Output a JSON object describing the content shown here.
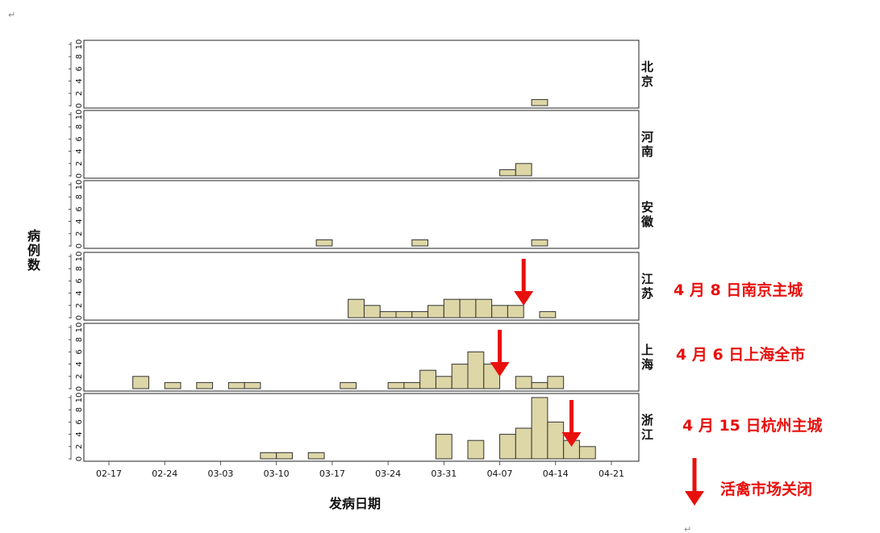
{
  "chart_data": {
    "type": "bar",
    "xlabel": "发病日期",
    "ylabel": "病例数",
    "x_ticks": [
      "02-17",
      "02-24",
      "03-03",
      "03-10",
      "03-17",
      "03-24",
      "03-31",
      "04-07",
      "04-14",
      "04-21"
    ],
    "bin_start": "02-15",
    "bin_days": 2,
    "y_ticks": [
      "0",
      "2",
      "4",
      "6",
      "8",
      "10"
    ],
    "ylim": [
      0,
      10
    ],
    "bar_color": "#ddd6a6",
    "panels": [
      {
        "name": "北京",
        "label_lines": [
          "北",
          "京"
        ],
        "bins": {
          "04-11": 1
        }
      },
      {
        "name": "河南",
        "label_lines": [
          "河",
          "南"
        ],
        "bins": {
          "04-07": 1,
          "04-09": 2
        }
      },
      {
        "name": "安徽",
        "label_lines": [
          "安",
          "徽"
        ],
        "bins": {
          "03-15": 1,
          "03-27": 1,
          "04-11": 1
        }
      },
      {
        "name": "江苏",
        "label_lines": [
          "江",
          "苏"
        ],
        "bins": {
          "03-19": 3,
          "03-21": 2,
          "03-23": 1,
          "03-25": 1,
          "03-27": 1,
          "03-29": 2,
          "03-31": 3,
          "04-02": 3,
          "04-04": 3,
          "04-06": 2,
          "04-08": 2,
          "04-12": 1
        }
      },
      {
        "name": "上海",
        "label_lines": [
          "上",
          "海"
        ],
        "bins": {
          "02-20": 2,
          "02-24": 1,
          "02-28": 1,
          "03-04": 1,
          "03-06": 1,
          "03-18": 1,
          "03-24": 1,
          "03-26": 1,
          "03-28": 3,
          "03-30": 2,
          "04-01": 4,
          "04-03": 6,
          "04-05": 4,
          "04-09": 2,
          "04-11": 1,
          "04-13": 2
        }
      },
      {
        "name": "浙江",
        "label_lines": [
          "浙",
          "江"
        ],
        "bins": {
          "03-08": 1,
          "03-10": 1,
          "03-14": 1,
          "03-30": 4,
          "04-03": 3,
          "04-07": 4,
          "04-09": 5,
          "04-11": 10,
          "04-13": 6,
          "04-15": 3,
          "04-17": 2
        }
      }
    ],
    "annotations": [
      {
        "panel": "江苏",
        "text": "4 月 8 日南京主城",
        "arrow_date": "04-09"
      },
      {
        "panel": "上海",
        "text": "4 月 6 日上海全市",
        "arrow_date": "04-06"
      },
      {
        "panel": "浙江",
        "text": "4 月 15 日杭州主城",
        "arrow_date": "04-15"
      }
    ],
    "legend": {
      "text": "活禽市场关闭"
    },
    "arrow_color": "#e8100d",
    "paragraph_mark": "↵"
  }
}
